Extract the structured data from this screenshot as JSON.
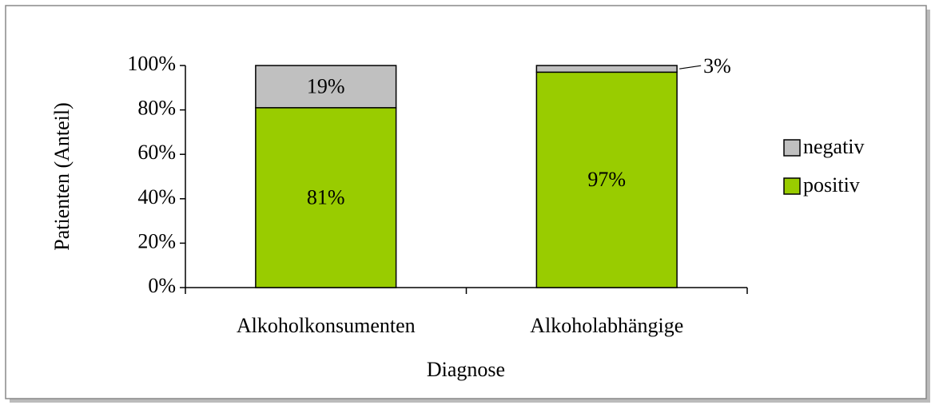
{
  "chart_data": {
    "type": "stacked_bar",
    "categories": [
      "Alkoholkonsumenten",
      "Alkoholabhängige"
    ],
    "series": [
      {
        "name": "positiv",
        "color": "#99cc00",
        "values": [
          81,
          97
        ],
        "value_labels": [
          "81%",
          "97%"
        ]
      },
      {
        "name": "negativ",
        "color": "#c0c0c0",
        "values": [
          19,
          3
        ],
        "value_labels": [
          "19%",
          "3%"
        ]
      }
    ],
    "xlabel": "Diagnose",
    "ylabel": "Patienten (Anteil)",
    "ylim": [
      0,
      100
    ],
    "yticks": [
      {
        "value": 0,
        "label": "0%"
      },
      {
        "value": 20,
        "label": "20%"
      },
      {
        "value": 40,
        "label": "40%"
      },
      {
        "value": 60,
        "label": "60%"
      },
      {
        "value": 80,
        "label": "80%"
      },
      {
        "value": 100,
        "label": "100%"
      }
    ],
    "legend": "right"
  }
}
